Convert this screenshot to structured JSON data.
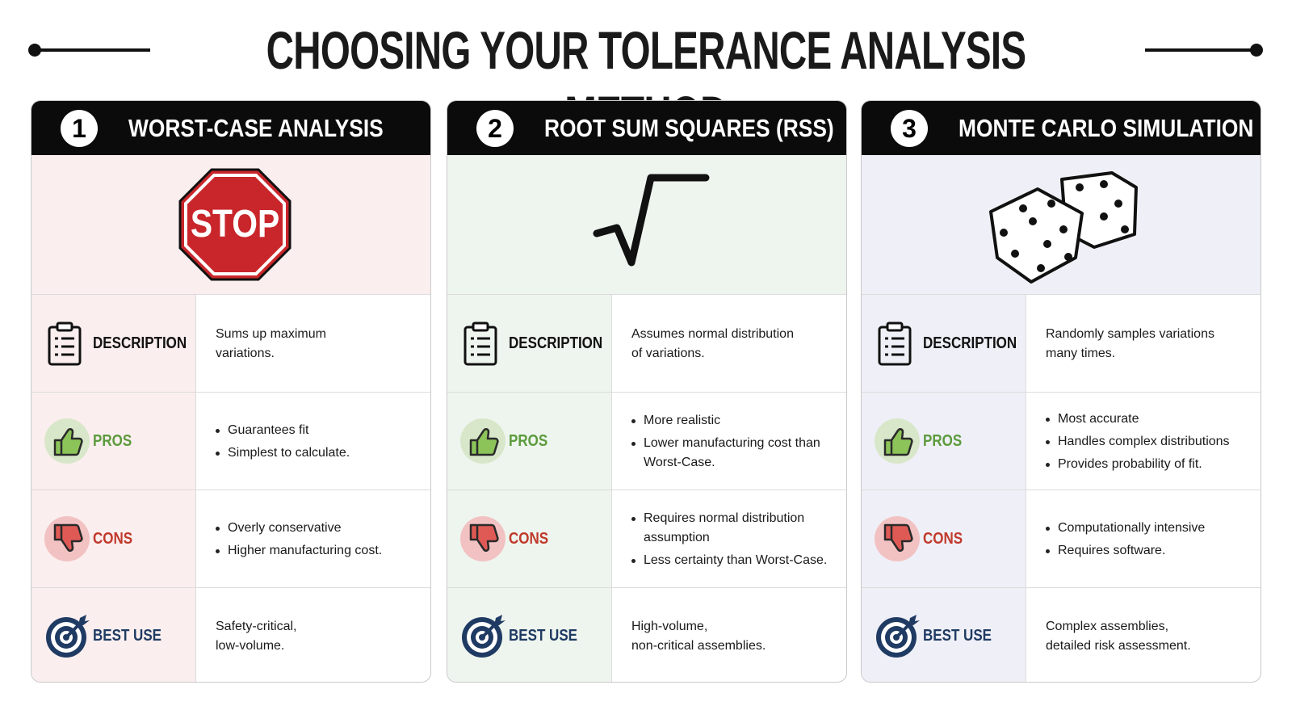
{
  "header": {
    "title": "CHOOSING YOUR TOLERANCE ANALYSIS METHOD"
  },
  "cards": [
    {
      "number": "1",
      "title": "WORST-CASE ANALYSIS",
      "icon_text": "STOP",
      "rows": [
        {
          "label": "DESCRIPTION",
          "lines": [
            "Sums up maximum",
            "variations."
          ]
        },
        {
          "label": "PROS",
          "items": [
            "Guarantees fit",
            "Simplest to calculate."
          ]
        },
        {
          "label": "CONS",
          "items": [
            "Overly conservative",
            "Higher manufacturing cost."
          ]
        },
        {
          "label": "BEST USE",
          "lines": [
            "Safety-critical,",
            "low-volume."
          ]
        }
      ]
    },
    {
      "number": "2",
      "title": "ROOT SUM SQUARES (RSS)",
      "rows": [
        {
          "label": "DESCRIPTION",
          "lines": [
            "Assumes normal distribution",
            "of variations."
          ]
        },
        {
          "label": "PROS",
          "items": [
            "More realistic",
            "Lower manufacturing cost than Worst-Case."
          ]
        },
        {
          "label": "CONS",
          "items": [
            "Requires normal distribution assumption",
            "Less certainty than Worst-Case."
          ]
        },
        {
          "label": "BEST USE",
          "lines": [
            "High-volume,",
            "non-critical assemblies."
          ]
        }
      ]
    },
    {
      "number": "3",
      "title": "MONTE CARLO SIMULATION",
      "rows": [
        {
          "label": "DESCRIPTION",
          "lines": [
            "Randomly samples variations",
            "many times."
          ]
        },
        {
          "label": "PROS",
          "items": [
            "Most accurate",
            "Handles complex distributions",
            "Provides probability of fit."
          ]
        },
        {
          "label": "CONS",
          "items": [
            "Computationally intensive",
            "Requires software."
          ]
        },
        {
          "label": "BEST USE",
          "lines": [
            "Complex assemblies,",
            "detailed risk assessment."
          ]
        }
      ]
    }
  ]
}
